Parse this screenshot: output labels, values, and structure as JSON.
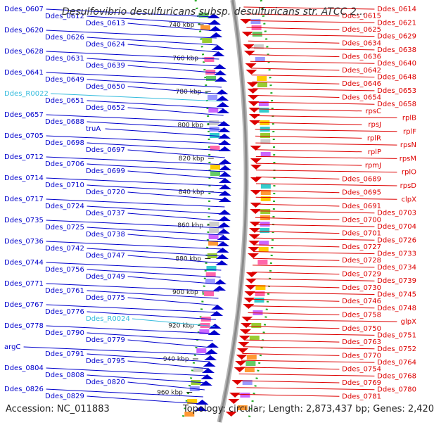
{
  "title": "Desulfovibrio desulfuricans subsp. desulfuricans str. ATCC 2...",
  "footer": {
    "accession": "Accession: NC_011883",
    "topology": "Topology: circular; Length: 2,873,437 bp; Genes: 2,420"
  },
  "colors": {
    "backbone": "#8a8a8a",
    "tick_dots": "#22aa22",
    "left_genes": "#0000cc",
    "right_genes": "#dd0000",
    "ncrna": "#33bbdd"
  },
  "scale_labels": [
    "740 kbp",
    "760 kbp",
    "780 kbp",
    "800 kbp",
    "820 kbp",
    "840 kbp",
    "860 kbp",
    "880 kbp",
    "900 kbp",
    "920 kbp",
    "940 kbp",
    "960 kbp"
  ],
  "left_labels": [
    "Ddes_0607",
    "Ddes_0612",
    "Ddes_0613",
    "Ddes_0620",
    "Ddes_0626",
    "Ddes_0624",
    "Ddes_0628",
    "Ddes_0631",
    "Ddes_0639",
    "Ddes_0641",
    "Ddes_0649",
    "Ddes_0650",
    "Ddes_R0022",
    "Ddes_0651",
    "Ddes_0652",
    "Ddes_0657",
    "Ddes_0688",
    "truA",
    "Ddes_0705",
    "Ddes_0698",
    "Ddes_0697",
    "Ddes_0712",
    "Ddes_0706",
    "Ddes_0699",
    "Ddes_0714",
    "Ddes_0710",
    "Ddes_0720",
    "Ddes_0717",
    "Ddes_0724",
    "Ddes_0737",
    "Ddes_0735",
    "Ddes_0725",
    "Ddes_0738",
    "Ddes_0736",
    "Ddes_0742",
    "Ddes_0747",
    "Ddes_0744",
    "Ddes_0756",
    "Ddes_0749",
    "Ddes_0771",
    "Ddes_0761",
    "Ddes_0775",
    "Ddes_0767",
    "Ddes_0776",
    "Ddes_R0024",
    "Ddes_0778",
    "Ddes_0790",
    "Ddes_0779",
    "argC",
    "Ddes_0791",
    "Ddes_0795",
    "Ddes_0804",
    "Ddes_0808",
    "Ddes_0820",
    "Ddes_0826",
    "Ddes_0829"
  ],
  "right_labels": [
    "Ddes_0614",
    "Ddes_0615",
    "Ddes_0621",
    "Ddes_0625",
    "Ddes_0629",
    "Ddes_0634",
    "Ddes_0638",
    "Ddes_0636",
    "Ddes_0640",
    "Ddes_0642",
    "Ddes_0648",
    "Ddes_0646",
    "Ddes_0653",
    "Ddes_0654",
    "Ddes_0658",
    "rpsC",
    "rplB",
    "rpsJ",
    "rplF",
    "rplR",
    "rpsN",
    "rplP",
    "rpsM",
    "rpmJ",
    "rplO",
    "Ddes_0689",
    "rpsD",
    "Ddes_0695",
    "clpX",
    "Ddes_0691",
    "Ddes_0703",
    "Ddes_0700",
    "Ddes_0704",
    "Ddes_0701",
    "Ddes_0726",
    "Ddes_0727",
    "Ddes_0733",
    "Ddes_0728",
    "Ddes_0734",
    "Ddes_0729",
    "Ddes_0739",
    "Ddes_0730",
    "Ddes_0745",
    "Ddes_0746",
    "Ddes_0748",
    "Ddes_0758",
    "glpX",
    "Ddes_0750",
    "Ddes_0751",
    "Ddes_0763",
    "Ddes_0752",
    "Ddes_0770",
    "Ddes_0764",
    "Ddes_0754",
    "Ddes_0768",
    "Ddes_0769",
    "Ddes_0780",
    "Ddes_0781"
  ]
}
